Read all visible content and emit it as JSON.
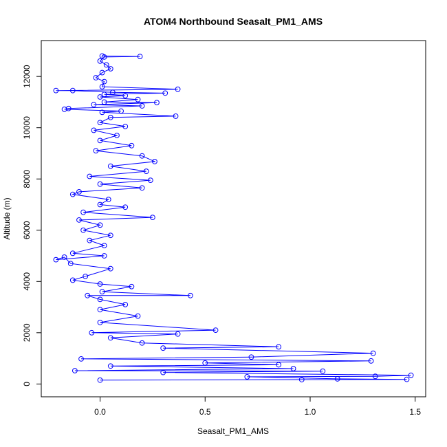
{
  "chart_data": {
    "type": "scatter",
    "title": "ATOM4 Northbound Seasalt_PM1_AMS",
    "xlabel": "Seasalt_PM1_AMS",
    "ylabel": "Altitude (m)",
    "xlim": [
      -0.28,
      1.55
    ],
    "ylim": [
      -500,
      13400
    ],
    "xticks": [
      {
        "value": 0.0,
        "label": "0.0"
      },
      {
        "value": 0.5,
        "label": "0.5"
      },
      {
        "value": 1.0,
        "label": "1.0"
      },
      {
        "value": 1.5,
        "label": "1.5"
      }
    ],
    "yticks": [
      {
        "value": 0,
        "label": "0"
      },
      {
        "value": 2000,
        "label": "2000"
      },
      {
        "value": 4000,
        "label": "4000"
      },
      {
        "value": 6000,
        "label": "6000"
      },
      {
        "value": 8000,
        "label": "8000"
      },
      {
        "value": 10000,
        "label": "10000"
      },
      {
        "value": 12000,
        "label": "12000"
      }
    ],
    "grid": false,
    "legend": "none",
    "color": "#0000ff",
    "marker": "open-circle",
    "connected": true,
    "series": [
      {
        "values": [
          {
            "x": 0.01,
            "y": 12800
          },
          {
            "x": 0.19,
            "y": 12780
          },
          {
            "x": 0.02,
            "y": 12760
          },
          {
            "x": 0.0,
            "y": 12600
          },
          {
            "x": 0.03,
            "y": 12450
          },
          {
            "x": 0.05,
            "y": 12300
          },
          {
            "x": 0.01,
            "y": 12150
          },
          {
            "x": -0.02,
            "y": 11950
          },
          {
            "x": 0.02,
            "y": 11800
          },
          {
            "x": 0.01,
            "y": 11600
          },
          {
            "x": 0.37,
            "y": 11500
          },
          {
            "x": -0.21,
            "y": 11450
          },
          {
            "x": -0.13,
            "y": 11450
          },
          {
            "x": 0.06,
            "y": 11380
          },
          {
            "x": 0.31,
            "y": 11350
          },
          {
            "x": 0.02,
            "y": 11300
          },
          {
            "x": 0.12,
            "y": 11250
          },
          {
            "x": 0.0,
            "y": 11200
          },
          {
            "x": 0.18,
            "y": 11100
          },
          {
            "x": 0.02,
            "y": 11000
          },
          {
            "x": 0.27,
            "y": 10980
          },
          {
            "x": -0.03,
            "y": 10900
          },
          {
            "x": 0.2,
            "y": 10850
          },
          {
            "x": -0.15,
            "y": 10750
          },
          {
            "x": -0.17,
            "y": 10720
          },
          {
            "x": 0.1,
            "y": 10650
          },
          {
            "x": 0.01,
            "y": 10600
          },
          {
            "x": 0.36,
            "y": 10450
          },
          {
            "x": 0.05,
            "y": 10400
          },
          {
            "x": 0.0,
            "y": 10200
          },
          {
            "x": 0.12,
            "y": 10050
          },
          {
            "x": -0.03,
            "y": 9900
          },
          {
            "x": 0.08,
            "y": 9700
          },
          {
            "x": 0.0,
            "y": 9500
          },
          {
            "x": 0.15,
            "y": 9300
          },
          {
            "x": -0.02,
            "y": 9100
          },
          {
            "x": 0.2,
            "y": 8900
          },
          {
            "x": 0.26,
            "y": 8680
          },
          {
            "x": 0.05,
            "y": 8500
          },
          {
            "x": 0.22,
            "y": 8300
          },
          {
            "x": -0.05,
            "y": 8100
          },
          {
            "x": 0.24,
            "y": 7950
          },
          {
            "x": 0.0,
            "y": 7800
          },
          {
            "x": 0.2,
            "y": 7650
          },
          {
            "x": -0.1,
            "y": 7500
          },
          {
            "x": -0.13,
            "y": 7400
          },
          {
            "x": 0.04,
            "y": 7200
          },
          {
            "x": 0.0,
            "y": 7000
          },
          {
            "x": 0.12,
            "y": 6900
          },
          {
            "x": -0.08,
            "y": 6700
          },
          {
            "x": 0.25,
            "y": 6500
          },
          {
            "x": -0.1,
            "y": 6400
          },
          {
            "x": 0.0,
            "y": 6200
          },
          {
            "x": -0.08,
            "y": 6000
          },
          {
            "x": 0.05,
            "y": 5800
          },
          {
            "x": -0.05,
            "y": 5600
          },
          {
            "x": 0.02,
            "y": 5400
          },
          {
            "x": -0.13,
            "y": 5100
          },
          {
            "x": 0.02,
            "y": 5000
          },
          {
            "x": -0.21,
            "y": 4850
          },
          {
            "x": -0.17,
            "y": 4950
          },
          {
            "x": -0.14,
            "y": 4700
          },
          {
            "x": 0.05,
            "y": 4500
          },
          {
            "x": -0.07,
            "y": 4200
          },
          {
            "x": -0.13,
            "y": 4050
          },
          {
            "x": 0.0,
            "y": 3900
          },
          {
            "x": 0.15,
            "y": 3800
          },
          {
            "x": 0.01,
            "y": 3600
          },
          {
            "x": 0.43,
            "y": 3450
          },
          {
            "x": -0.06,
            "y": 3450
          },
          {
            "x": 0.0,
            "y": 3300
          },
          {
            "x": 0.12,
            "y": 3100
          },
          {
            "x": 0.0,
            "y": 2900
          },
          {
            "x": 0.18,
            "y": 2650
          },
          {
            "x": 0.0,
            "y": 2400
          },
          {
            "x": 0.55,
            "y": 2100
          },
          {
            "x": -0.04,
            "y": 2000
          },
          {
            "x": 0.37,
            "y": 1950
          },
          {
            "x": 0.05,
            "y": 1800
          },
          {
            "x": 0.2,
            "y": 1600
          },
          {
            "x": 0.85,
            "y": 1450
          },
          {
            "x": 0.3,
            "y": 1400
          },
          {
            "x": 1.3,
            "y": 1200
          },
          {
            "x": 0.72,
            "y": 1050
          },
          {
            "x": -0.09,
            "y": 980
          },
          {
            "x": 1.29,
            "y": 900
          },
          {
            "x": 0.5,
            "y": 820
          },
          {
            "x": 0.85,
            "y": 750
          },
          {
            "x": 0.05,
            "y": 700
          },
          {
            "x": 0.92,
            "y": 600
          },
          {
            "x": -0.12,
            "y": 520
          },
          {
            "x": 1.06,
            "y": 500
          },
          {
            "x": 0.3,
            "y": 450
          },
          {
            "x": 1.48,
            "y": 340
          },
          {
            "x": 1.31,
            "y": 300
          },
          {
            "x": 0.7,
            "y": 280
          },
          {
            "x": 1.13,
            "y": 200
          },
          {
            "x": 1.46,
            "y": 180
          },
          {
            "x": 0.96,
            "y": 170
          },
          {
            "x": 0.0,
            "y": 150
          }
        ]
      }
    ]
  }
}
